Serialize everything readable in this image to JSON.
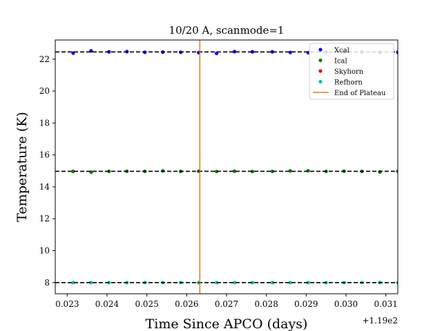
{
  "chart_data": {
    "type": "scatter",
    "title": "10/20 A, scanmode=1",
    "xlabel": "Time Since APCO (days)",
    "ylabel": "Temperature (K)",
    "x_offset_label": "+1.19e2",
    "xlim": [
      119.0227,
      119.0313
    ],
    "ylim": [
      7.3,
      23.2
    ],
    "x_ticks": [
      119.023,
      119.024,
      119.025,
      119.026,
      119.027,
      119.028,
      119.029,
      119.03,
      119.031
    ],
    "x_tick_labels": [
      "0.023",
      "0.024",
      "0.025",
      "0.026",
      "0.027",
      "0.028",
      "0.029",
      "0.030",
      "0.031"
    ],
    "y_ticks": [
      8,
      10,
      12,
      14,
      16,
      18,
      20,
      22
    ],
    "y_tick_labels": [
      "8",
      "10",
      "12",
      "14",
      "16",
      "18",
      "20",
      "22"
    ],
    "grid": false,
    "legend_position": "top-right",
    "x": [
      119.02265,
      119.02315,
      119.0236,
      119.02405,
      119.0245,
      119.02495,
      119.0254,
      119.02585,
      119.0263,
      119.02675,
      119.0272,
      119.02765,
      119.02815,
      119.0286,
      119.02905,
      119.0295,
      119.02995,
      119.0304,
      119.03085,
      119.0313
    ],
    "series": [
      {
        "name": "Xcal",
        "color": "#0000ff",
        "values": [
          22.45,
          22.38,
          22.52,
          22.46,
          22.47,
          22.43,
          22.44,
          22.43,
          22.41,
          22.36,
          22.47,
          22.46,
          22.46,
          22.42,
          22.4,
          22.44,
          22.43,
          22.44,
          22.42,
          22.43
        ]
      },
      {
        "name": "Ical",
        "color": "#008000",
        "values": [
          14.98,
          14.97,
          14.92,
          14.97,
          14.98,
          14.97,
          15.0,
          14.97,
          14.98,
          14.96,
          14.98,
          14.96,
          14.97,
          15.0,
          15.01,
          14.97,
          14.98,
          14.97,
          14.93,
          14.98
        ]
      },
      {
        "name": "Skyhorn",
        "color": "#ff0000",
        "values": []
      },
      {
        "name": "Refhorn",
        "color": "#00bfbf",
        "values": [
          8.0,
          8.0,
          8.0,
          8.0,
          8.0,
          8.0,
          8.0,
          8.0,
          8.0,
          8.0,
          8.0,
          8.0,
          8.0,
          8.0,
          8.0,
          8.0,
          8.0,
          8.0,
          8.0,
          8.0
        ]
      }
    ],
    "reference_lines": [
      {
        "axis": "y",
        "value": 22.45,
        "style": "dashed",
        "color": "#000000"
      },
      {
        "axis": "y",
        "value": 14.97,
        "style": "dashed",
        "color": "#000000"
      },
      {
        "axis": "y",
        "value": 8.0,
        "style": "dashed",
        "color": "#000000"
      }
    ],
    "vertical_line": {
      "name": "End of Plateau",
      "x": 119.02633,
      "color": "#e07b1a"
    },
    "legend": [
      "Xcal",
      "Ical",
      "Skyhorn",
      "Refhorn",
      "End of Plateau"
    ]
  }
}
